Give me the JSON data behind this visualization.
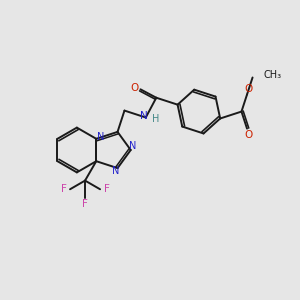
{
  "background_color": "#e6e6e6",
  "bond_color": "#1a1a1a",
  "nitrogen_color": "#2222cc",
  "oxygen_color": "#cc2200",
  "fluorine_color": "#cc44aa",
  "hydrogen_color": "#448888",
  "figsize": [
    3.0,
    3.0
  ],
  "dpi": 100,
  "xlim": [
    0,
    10
  ],
  "ylim": [
    0,
    10
  ]
}
